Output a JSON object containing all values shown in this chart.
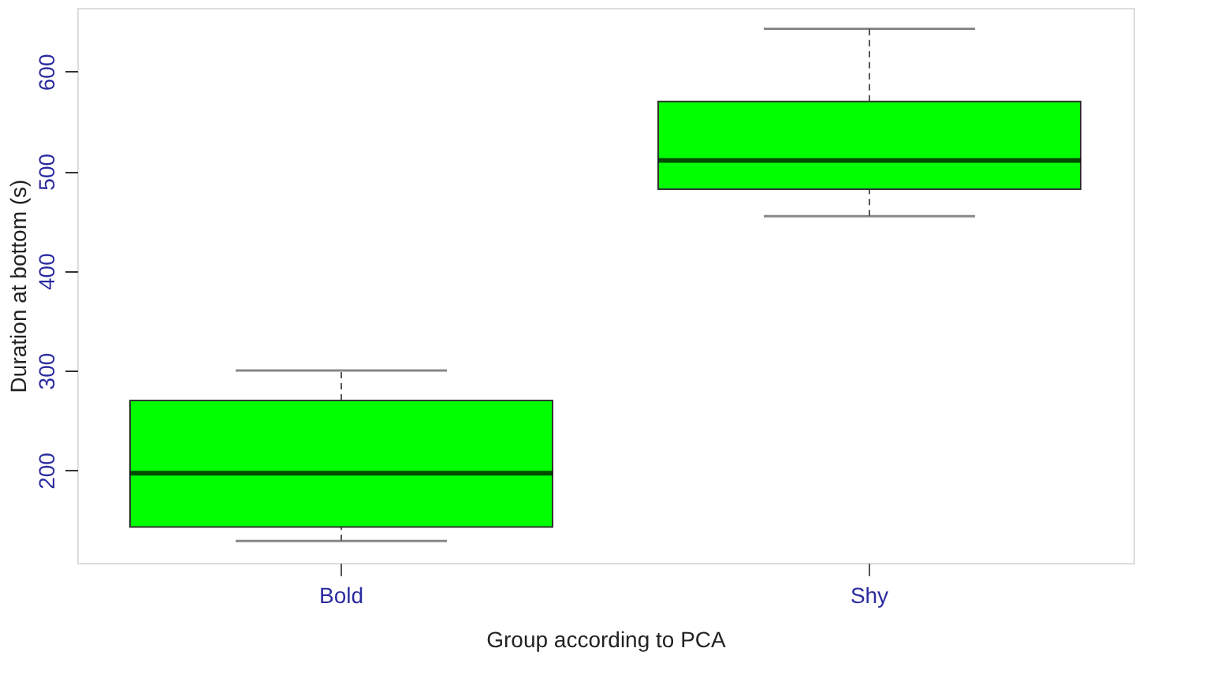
{
  "chart_data": {
    "type": "box",
    "xlabel": "Group according to PCA",
    "ylabel": "Duration at bottom (s)",
    "categories": [
      "Bold",
      "Shy"
    ],
    "color": "#00ff00",
    "boxes": [
      {
        "low": 129,
        "q1": 143,
        "median": 197,
        "q3": 270,
        "high": 300
      },
      {
        "low": 455,
        "q1": 482,
        "median": 511,
        "q3": 570,
        "high": 643
      }
    ],
    "ylim": [
      107,
      664
    ],
    "yticks": [
      200,
      300,
      400,
      500,
      600
    ]
  }
}
